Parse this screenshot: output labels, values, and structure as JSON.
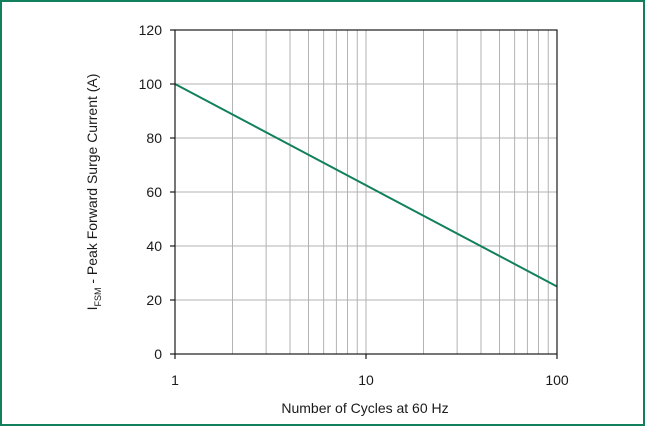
{
  "chart_data": {
    "type": "line",
    "x_scale": "log",
    "y_scale": "linear",
    "xlim": [
      1,
      100
    ],
    "ylim": [
      0,
      120
    ],
    "x_major_ticks": [
      "1",
      "10",
      "100"
    ],
    "y_ticks": [
      "0",
      "20",
      "40",
      "60",
      "80",
      "100",
      "120"
    ],
    "grid": true,
    "xlabel": "Number of Cycles at 60 Hz",
    "ylabel": {
      "symbol": "I",
      "subscript": "FSM",
      "text": " - Peak Forward Surge Current (A)"
    },
    "series": [
      {
        "x": [
          1,
          100
        ],
        "y": [
          100,
          25
        ],
        "color": "#12805c"
      }
    ]
  },
  "colors": {
    "frame_border": "#12805c",
    "grid": "#b3b3b3",
    "axis": "#1a1a1a"
  }
}
